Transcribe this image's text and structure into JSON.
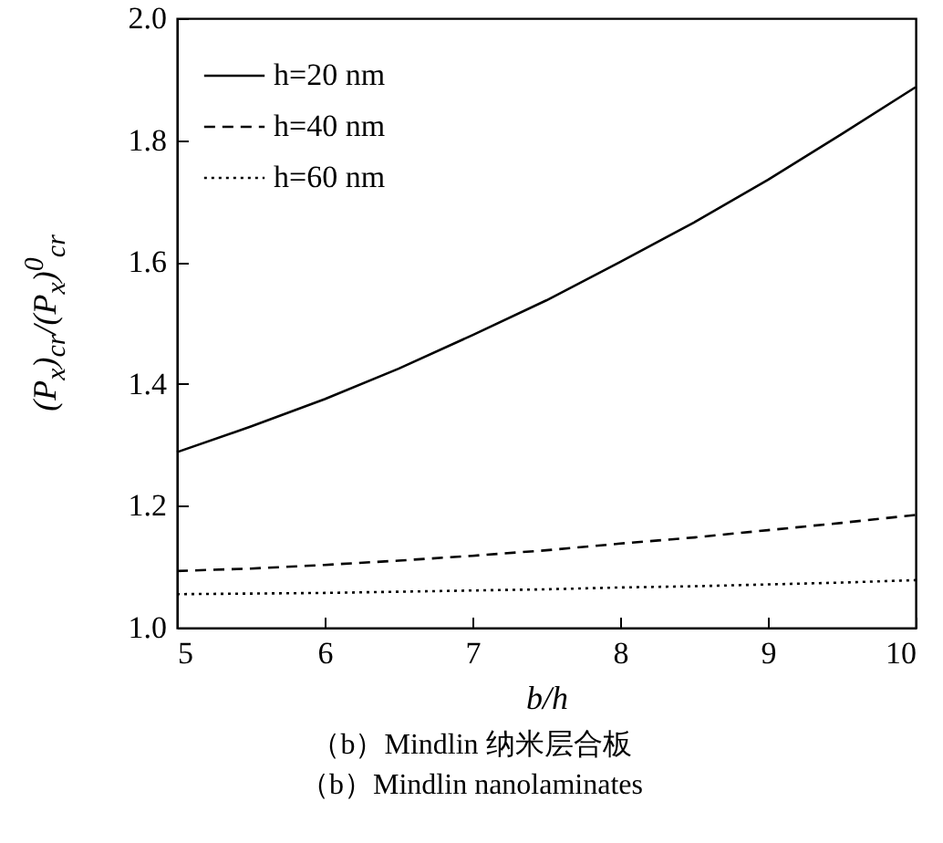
{
  "chart_data": {
    "type": "line",
    "xlabel": "b/h",
    "ylabel": "(P$_{x}$)$_{cr}$/(P$_{x}$)$^{0}$$_{cr}$",
    "annotations": [
      "（b）Mindlin 纳米层合板",
      "（b）Mindlin nanolaminates"
    ],
    "x": [
      5,
      5.5,
      6,
      6.5,
      7,
      7.5,
      8,
      8.5,
      9,
      9.5,
      10
    ],
    "series": [
      {
        "name": "h=20 nm",
        "color": "#000000",
        "line_style": "solid",
        "values": [
          1.288,
          1.33,
          1.375,
          1.425,
          1.48,
          1.537,
          1.6,
          1.665,
          1.735,
          1.81,
          1.887
        ]
      },
      {
        "name": "h=40 nm",
        "color": "#000000",
        "line_style": "dashed",
        "values": [
          1.093,
          1.097,
          1.103,
          1.11,
          1.118,
          1.127,
          1.138,
          1.148,
          1.16,
          1.172,
          1.185
        ]
      },
      {
        "name": "h=60 nm",
        "color": "#000000",
        "line_style": "dotted",
        "values": [
          1.055,
          1.056,
          1.057,
          1.059,
          1.061,
          1.063,
          1.066,
          1.068,
          1.071,
          1.074,
          1.078
        ]
      }
    ],
    "xlim": [
      5,
      10
    ],
    "xticks": [
      5,
      6,
      7,
      8,
      9,
      10
    ],
    "ylim": [
      1,
      2
    ],
    "yticks": [
      {
        "value": 1,
        "label": "1.0"
      },
      1.2,
      1.4,
      1.6,
      1.8,
      {
        "value": 2,
        "label": "2.0"
      }
    ],
    "grid": false,
    "legend": "top left",
    "marker": "none"
  }
}
